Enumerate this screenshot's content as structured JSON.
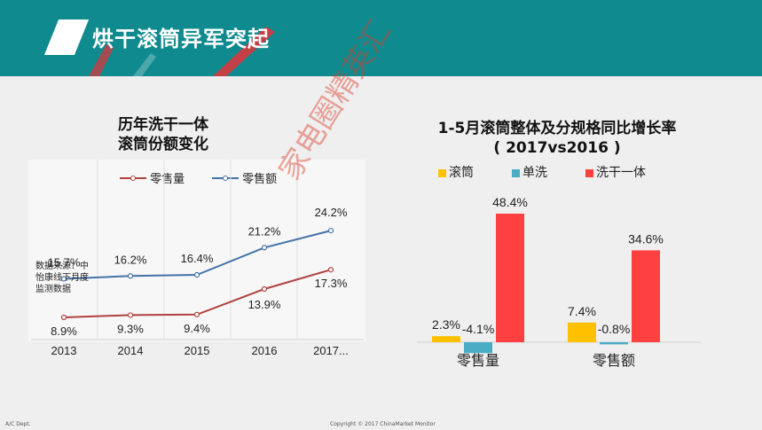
{
  "slide": {
    "title": "烘干滚筒异军突起",
    "footer_left": "A/C Dept.",
    "footer_center": "Copyright © 2017 ChinaMarket Monitor",
    "watermark": "家电圈精英汇"
  },
  "left_chart_meta": {
    "title_line1": "历年洗干一体",
    "title_line2": "滚筒份额变化",
    "note": "数据来源：中怡康线下月度监测数据",
    "legend_volume": "零售量",
    "legend_value": "零售额"
  },
  "right_chart_meta": {
    "title_line1": "1-5月滚筒整体及分规格同比增长率",
    "title_line2": "( 2017vs2016 )",
    "legend": [
      "滚筒",
      "单洗",
      "洗干一体"
    ]
  },
  "colors": {
    "header": "#0f8a8e",
    "volume_line": "#b0413e",
    "value_line": "#4472a8",
    "drum": "#ffc000",
    "single": "#4bacc6",
    "washer_dryer": "#ff4040"
  },
  "chart_data": [
    {
      "type": "line",
      "title": "历年洗干一体滚筒份额变化",
      "categories": [
        "2013",
        "2014",
        "2015",
        "2016",
        "2017..."
      ],
      "series": [
        {
          "name": "零售量",
          "values": [
            8.9,
            9.3,
            9.4,
            13.9,
            17.3
          ],
          "labels": [
            "8.9%",
            "9.3%",
            "9.4%",
            "13.9%",
            "17.3%"
          ],
          "color": "#b0413e"
        },
        {
          "name": "零售额",
          "values": [
            15.7,
            16.2,
            16.4,
            21.2,
            24.2
          ],
          "labels": [
            "15.7%",
            "16.2%",
            "16.4%",
            "21.2%",
            "24.2%"
          ],
          "color": "#4472a8"
        }
      ],
      "legend": "top"
    },
    {
      "type": "bar",
      "title": "1-5月滚筒整体及分规格同比增长率 ( 2017vs2016 )",
      "categories": [
        "零售量",
        "零售额"
      ],
      "series": [
        {
          "name": "滚筒",
          "values": [
            2.3,
            7.4
          ],
          "labels": [
            "2.3%",
            "7.4%"
          ],
          "color": "#ffc000"
        },
        {
          "name": "单洗",
          "values": [
            -4.1,
            -0.8
          ],
          "labels": [
            "-4.1%",
            "-0.8%"
          ],
          "color": "#4bacc6"
        },
        {
          "name": "洗干一体",
          "values": [
            48.4,
            34.6
          ],
          "labels": [
            "48.4%",
            "34.6%"
          ],
          "color": "#ff4040"
        }
      ],
      "legend": "top"
    }
  ]
}
